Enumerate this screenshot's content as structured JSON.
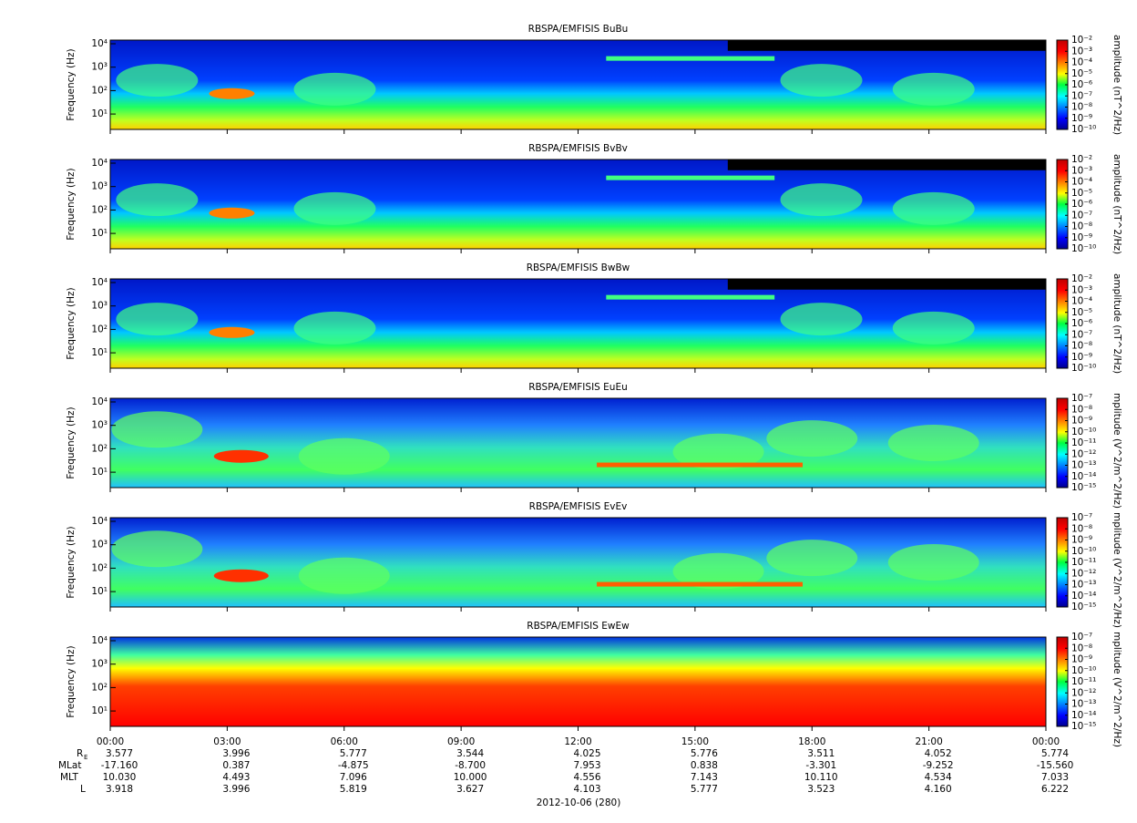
{
  "chart_data": [
    {
      "type": "spectrogram",
      "title": "RBSPA/EMFISIS  BuBu",
      "ylabel": "Frequency (Hz)",
      "ylim": [
        2.2,
        14300
      ],
      "ylog": true,
      "yticks": [
        {
          "value": 10,
          "label": "10¹"
        },
        {
          "value": 100,
          "label": "10²"
        },
        {
          "value": 1000,
          "label": "10³"
        },
        {
          "value": 10000,
          "label": "10⁴"
        }
      ],
      "zlabel": "amplitude (nT^2/Hz)",
      "zlim": [
        1e-10,
        0.01
      ],
      "zticks": [
        {
          "value": 1e-10,
          "label": "10⁻¹⁰"
        },
        {
          "value": 1e-09,
          "label": "10⁻⁹"
        },
        {
          "value": 1e-08,
          "label": "10⁻⁸"
        },
        {
          "value": 1e-07,
          "label": "10⁻⁷"
        },
        {
          "value": 1e-06,
          "label": "10⁻⁶"
        },
        {
          "value": 1e-05,
          "label": "10⁻⁵"
        },
        {
          "value": 0.0001,
          "label": "10⁻⁴"
        },
        {
          "value": 0.001,
          "label": "10⁻³"
        },
        {
          "value": 0.01,
          "label": "10⁻²"
        }
      ]
    },
    {
      "type": "spectrogram",
      "title": "RBSPA/EMFISIS  BvBv",
      "ylabel": "Frequency (Hz)",
      "ylim": [
        2.2,
        14300
      ],
      "ylog": true,
      "yticks": [
        {
          "value": 10,
          "label": "10¹"
        },
        {
          "value": 100,
          "label": "10²"
        },
        {
          "value": 1000,
          "label": "10³"
        },
        {
          "value": 10000,
          "label": "10⁴"
        }
      ],
      "zlabel": "amplitude (nT^2/Hz)",
      "zlim": [
        1e-10,
        0.01
      ],
      "zticks": [
        {
          "value": 1e-10,
          "label": "10⁻¹⁰"
        },
        {
          "value": 1e-09,
          "label": "10⁻⁹"
        },
        {
          "value": 1e-08,
          "label": "10⁻⁸"
        },
        {
          "value": 1e-07,
          "label": "10⁻⁷"
        },
        {
          "value": 1e-06,
          "label": "10⁻⁶"
        },
        {
          "value": 1e-05,
          "label": "10⁻⁵"
        },
        {
          "value": 0.0001,
          "label": "10⁻⁴"
        },
        {
          "value": 0.001,
          "label": "10⁻³"
        },
        {
          "value": 0.01,
          "label": "10⁻²"
        }
      ]
    },
    {
      "type": "spectrogram",
      "title": "RBSPA/EMFISIS  BwBw",
      "ylabel": "Frequency (Hz)",
      "ylim": [
        2.2,
        14300
      ],
      "ylog": true,
      "yticks": [
        {
          "value": 10,
          "label": "10¹"
        },
        {
          "value": 100,
          "label": "10²"
        },
        {
          "value": 1000,
          "label": "10³"
        },
        {
          "value": 10000,
          "label": "10⁴"
        }
      ],
      "zlabel": "amplitude (nT^2/Hz)",
      "zlim": [
        1e-10,
        0.01
      ],
      "zticks": [
        {
          "value": 1e-10,
          "label": "10⁻¹⁰"
        },
        {
          "value": 1e-09,
          "label": "10⁻⁹"
        },
        {
          "value": 1e-08,
          "label": "10⁻⁸"
        },
        {
          "value": 1e-07,
          "label": "10⁻⁷"
        },
        {
          "value": 1e-06,
          "label": "10⁻⁶"
        },
        {
          "value": 1e-05,
          "label": "10⁻⁵"
        },
        {
          "value": 0.0001,
          "label": "10⁻⁴"
        },
        {
          "value": 0.001,
          "label": "10⁻³"
        },
        {
          "value": 0.01,
          "label": "10⁻²"
        }
      ]
    },
    {
      "type": "spectrogram",
      "title": "RBSPA/EMFISIS  EuEu",
      "ylabel": "Frequency (Hz)",
      "ylim": [
        2.2,
        14300
      ],
      "ylog": true,
      "yticks": [
        {
          "value": 10,
          "label": "10¹"
        },
        {
          "value": 100,
          "label": "10²"
        },
        {
          "value": 1000,
          "label": "10³"
        },
        {
          "value": 10000,
          "label": "10⁴"
        }
      ],
      "zlabel": "mplitude (V^2/m^2/Hz)",
      "zlim": [
        1e-15,
        1e-07
      ],
      "zticks": [
        {
          "value": 1e-15,
          "label": "10⁻¹⁵"
        },
        {
          "value": 1e-14,
          "label": "10⁻¹⁴"
        },
        {
          "value": 1e-13,
          "label": "10⁻¹³"
        },
        {
          "value": 1e-12,
          "label": "10⁻¹²"
        },
        {
          "value": 1e-11,
          "label": "10⁻¹¹"
        },
        {
          "value": 1e-10,
          "label": "10⁻¹⁰"
        },
        {
          "value": 1e-09,
          "label": "10⁻⁹"
        },
        {
          "value": 1e-08,
          "label": "10⁻⁸"
        },
        {
          "value": 1e-07,
          "label": "10⁻⁷"
        }
      ]
    },
    {
      "type": "spectrogram",
      "title": "RBSPA/EMFISIS  EvEv",
      "ylabel": "Frequency (Hz)",
      "ylim": [
        2.2,
        14300
      ],
      "ylog": true,
      "yticks": [
        {
          "value": 10,
          "label": "10¹"
        },
        {
          "value": 100,
          "label": "10²"
        },
        {
          "value": 1000,
          "label": "10³"
        },
        {
          "value": 10000,
          "label": "10⁴"
        }
      ],
      "zlabel": "mplitude (V^2/m^2/Hz)",
      "zlim": [
        1e-15,
        1e-07
      ],
      "zticks": [
        {
          "value": 1e-15,
          "label": "10⁻¹⁵"
        },
        {
          "value": 1e-14,
          "label": "10⁻¹⁴"
        },
        {
          "value": 1e-13,
          "label": "10⁻¹³"
        },
        {
          "value": 1e-12,
          "label": "10⁻¹²"
        },
        {
          "value": 1e-11,
          "label": "10⁻¹¹"
        },
        {
          "value": 1e-10,
          "label": "10⁻¹⁰"
        },
        {
          "value": 1e-09,
          "label": "10⁻⁹"
        },
        {
          "value": 1e-08,
          "label": "10⁻⁸"
        },
        {
          "value": 1e-07,
          "label": "10⁻⁷"
        }
      ]
    },
    {
      "type": "spectrogram",
      "title": "RBSPA/EMFISIS  EwEw",
      "ylabel": "Frequency (Hz)",
      "ylim": [
        2.2,
        14300
      ],
      "ylog": true,
      "yticks": [
        {
          "value": 10,
          "label": "10¹"
        },
        {
          "value": 100,
          "label": "10²"
        },
        {
          "value": 1000,
          "label": "10³"
        },
        {
          "value": 10000,
          "label": "10⁴"
        }
      ],
      "zlabel": "mplitude (V^2/m^2/Hz)",
      "zlim": [
        1e-15,
        1e-07
      ],
      "zticks": [
        {
          "value": 1e-15,
          "label": "10⁻¹⁵"
        },
        {
          "value": 1e-14,
          "label": "10⁻¹⁴"
        },
        {
          "value": 1e-13,
          "label": "10⁻¹³"
        },
        {
          "value": 1e-12,
          "label": "10⁻¹²"
        },
        {
          "value": 1e-11,
          "label": "10⁻¹¹"
        },
        {
          "value": 1e-10,
          "label": "10⁻¹⁰"
        },
        {
          "value": 1e-09,
          "label": "10⁻⁹"
        },
        {
          "value": 1e-08,
          "label": "10⁻⁸"
        },
        {
          "value": 1e-07,
          "label": "10⁻⁷"
        }
      ]
    }
  ],
  "x_axis": {
    "xlim": [
      0,
      24
    ],
    "xticks": [
      {
        "value": 0,
        "label": "00:00"
      },
      {
        "value": 3,
        "label": "03:00"
      },
      {
        "value": 6,
        "label": "06:00"
      },
      {
        "value": 9,
        "label": "09:00"
      },
      {
        "value": 12,
        "label": "12:00"
      },
      {
        "value": 15,
        "label": "15:00"
      },
      {
        "value": 18,
        "label": "18:00"
      },
      {
        "value": 21,
        "label": "21:00"
      },
      {
        "value": 24,
        "label": "00:00"
      }
    ],
    "xlabel": "2012-10-06 (280)"
  },
  "ephemeris": [
    {
      "label": "R",
      "subscript": "E",
      "values": [
        "3.577",
        "3.996",
        "5.777",
        "3.544",
        "4.025",
        "5.776",
        "3.511",
        "4.052",
        "5.774"
      ]
    },
    {
      "label": "MLat",
      "values": [
        "-17.160",
        "0.387",
        "-4.875",
        "-8.700",
        "7.953",
        "0.838",
        "-3.301",
        "-9.252",
        "-15.560"
      ]
    },
    {
      "label": "MLT",
      "values": [
        "10.030",
        "4.493",
        "7.096",
        "10.000",
        "4.556",
        "7.143",
        "10.110",
        "4.534",
        "7.033"
      ]
    },
    {
      "label": "L",
      "values": [
        "3.918",
        "3.996",
        "5.819",
        "3.627",
        "4.103",
        "5.777",
        "3.523",
        "4.160",
        "6.222"
      ]
    }
  ]
}
